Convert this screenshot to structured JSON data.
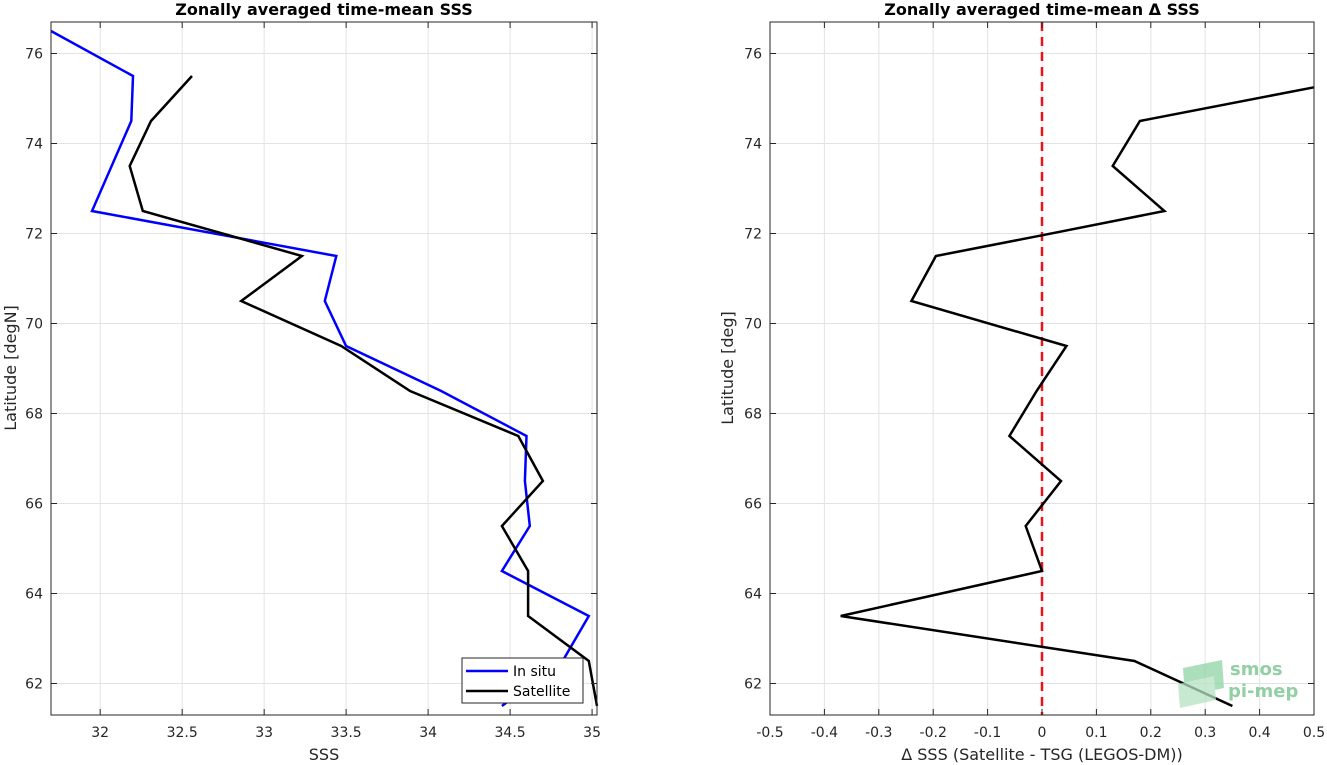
{
  "chart_data": [
    {
      "type": "line",
      "title": "Zonally averaged time-mean SSS",
      "xlabel": "SSS",
      "ylabel": "Latitude [degN]",
      "xlim": [
        31.7,
        35.03
      ],
      "ylim": [
        61.3,
        76.7
      ],
      "xticks": [
        "32",
        "32.5",
        "33",
        "33.5",
        "34",
        "34.5",
        "35"
      ],
      "yticks": [
        "62",
        "64",
        "66",
        "68",
        "70",
        "72",
        "74",
        "76"
      ],
      "grid": true,
      "legend_position": "bottom-right",
      "series": [
        {
          "name": "In situ",
          "color": "#0000ff",
          "points": [
            [
              31.7,
              76.5
            ],
            [
              32.2,
              75.5
            ],
            [
              32.19,
              74.5
            ],
            [
              31.95,
              72.5
            ],
            [
              33.44,
              71.5
            ],
            [
              33.37,
              70.5
            ],
            [
              33.5,
              69.5
            ],
            [
              34.08,
              68.5
            ],
            [
              34.6,
              67.5
            ],
            [
              34.59,
              66.5
            ],
            [
              34.62,
              65.5
            ],
            [
              34.45,
              64.5
            ],
            [
              34.98,
              63.5
            ],
            [
              34.82,
              62.5
            ],
            [
              34.45,
              61.5
            ]
          ]
        },
        {
          "name": "Satellite",
          "color": "#000000",
          "points": [
            [
              32.56,
              75.5
            ],
            [
              32.31,
              74.5
            ],
            [
              32.18,
              73.5
            ],
            [
              32.26,
              72.5
            ],
            [
              33.23,
              71.5
            ],
            [
              32.86,
              70.5
            ],
            [
              33.47,
              69.5
            ],
            [
              33.89,
              68.5
            ],
            [
              34.55,
              67.5
            ],
            [
              34.7,
              66.5
            ],
            [
              34.45,
              65.5
            ],
            [
              34.61,
              64.5
            ],
            [
              34.61,
              63.5
            ],
            [
              34.98,
              62.5
            ],
            [
              35.03,
              61.5
            ]
          ]
        }
      ]
    },
    {
      "type": "line",
      "title": "Zonally averaged time-mean Δ SSS",
      "xlabel": "Δ SSS (Satellite - TSG (LEGOS-DM))",
      "ylabel": "Latitude [deg]",
      "xlim": [
        -0.5,
        0.5
      ],
      "ylim": [
        61.3,
        76.7
      ],
      "xticks": [
        "-0.5",
        "-0.4",
        "-0.3",
        "-0.2",
        "-0.1",
        "0",
        "0.1",
        "0.2",
        "0.3",
        "0.4",
        "0.5"
      ],
      "yticks": [
        "62",
        "64",
        "66",
        "68",
        "70",
        "72",
        "74",
        "76"
      ],
      "grid": true,
      "reference_line": {
        "x": 0,
        "color": "#e8141a",
        "style": "dashed"
      },
      "series": [
        {
          "color": "#000000",
          "points": [
            [
              0.5,
              75.25
            ],
            [
              0.18,
              74.5
            ],
            [
              0.13,
              73.5
            ],
            [
              0.225,
              72.5
            ],
            [
              0.0,
              71.96
            ],
            [
              -0.195,
              71.5
            ],
            [
              -0.24,
              70.5
            ],
            [
              0.045,
              69.5
            ],
            [
              -0.01,
              68.5
            ],
            [
              -0.06,
              67.5
            ],
            [
              0.035,
              66.5
            ],
            [
              -0.03,
              65.5
            ],
            [
              0.0,
              64.5
            ],
            [
              -0.37,
              63.5
            ],
            [
              0.17,
              62.5
            ],
            [
              0.35,
              61.5
            ]
          ]
        }
      ]
    }
  ],
  "logo": {
    "line1": "smos",
    "line2": "pi-mep",
    "color": "#6fbf86"
  }
}
